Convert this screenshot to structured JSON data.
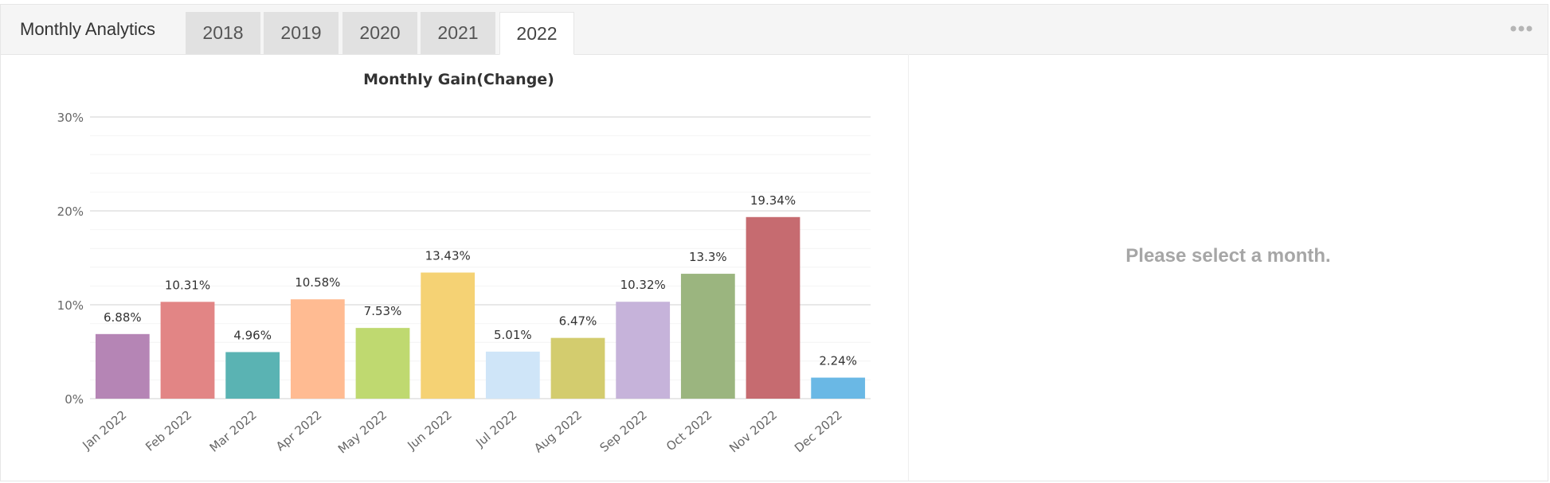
{
  "header": {
    "title": "Monthly Analytics",
    "tabs": [
      {
        "label": "2018",
        "active": false
      },
      {
        "label": "2019",
        "active": false
      },
      {
        "label": "2020",
        "active": false
      },
      {
        "label": "2021",
        "active": false
      },
      {
        "label": "2022",
        "active": true
      }
    ],
    "more_icon": "more-dots-icon"
  },
  "right_panel": {
    "message": "Please select a month."
  },
  "chart_data": {
    "type": "bar",
    "title": "Monthly Gain(Change)",
    "xlabel": "",
    "ylabel": "",
    "ylim": [
      0,
      30
    ],
    "yticks": [
      0,
      10,
      20,
      30
    ],
    "ytick_labels": [
      "0%",
      "10%",
      "20%",
      "30%"
    ],
    "grid": true,
    "categories": [
      "Jan 2022",
      "Feb 2022",
      "Mar 2022",
      "Apr 2022",
      "May 2022",
      "Jun 2022",
      "Jul 2022",
      "Aug 2022",
      "Sep 2022",
      "Oct 2022",
      "Nov 2022",
      "Dec 2022"
    ],
    "values": [
      6.88,
      10.31,
      4.96,
      10.58,
      7.53,
      13.43,
      5.01,
      6.47,
      10.32,
      13.3,
      19.34,
      2.24
    ],
    "data_labels": [
      "6.88%",
      "10.31%",
      "4.96%",
      "10.58%",
      "7.53%",
      "13.43%",
      "5.01%",
      "6.47%",
      "10.32%",
      "13.3%",
      "19.34%",
      "2.24%"
    ],
    "colors": [
      "#b585b5",
      "#e28585",
      "#5ab3b3",
      "#ffbb92",
      "#bfd970",
      "#f5d274",
      "#cfe5f8",
      "#d3cc6e",
      "#c6b3da",
      "#9bb57f",
      "#c66b70",
      "#6ab8e5"
    ]
  }
}
